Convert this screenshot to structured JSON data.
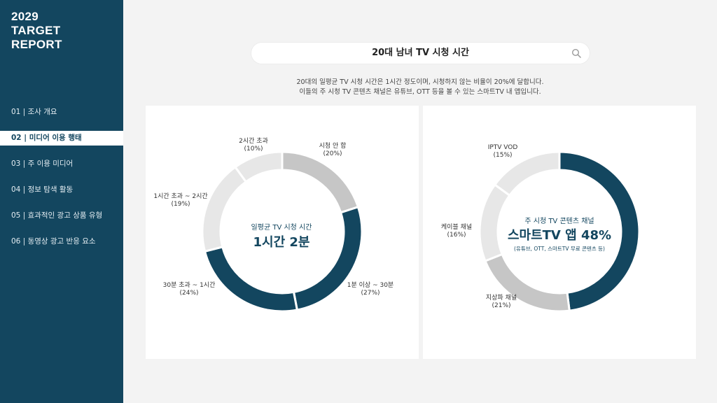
{
  "sidebar": {
    "title_lines": [
      "2029",
      "TARGET",
      "REPORT"
    ],
    "items": [
      {
        "label": "01 | 조사 개요",
        "active": false
      },
      {
        "label": "02 | 미디어 이용 행태",
        "active": true
      },
      {
        "label": "03 | 주 이용 미디어",
        "active": false
      },
      {
        "label": "04 | 정보 탐색 활동",
        "active": false
      },
      {
        "label": "05 | 효과적인 광고 상품 유형",
        "active": false
      },
      {
        "label": "06 | 동영상 광고 반응 요소",
        "active": false
      }
    ]
  },
  "search": {
    "title": "20대 남녀 TV 시청 시간",
    "icon": "search-icon"
  },
  "description": {
    "line1": "20대의 일평균 TV 시청 시간은 1시간 정도이며, 시청하지 않는 비율이 20%에 달합니다.",
    "line2": "이들의 주 시청 TV 콘텐츠 채널은 유튜브, OTT 등을 볼 수 있는 스마트TV 내 앱입니다."
  },
  "colors": {
    "dark": "#13465f",
    "mid": "#c6c6c6",
    "light": "#e7e7e7",
    "sidebar": "#13465f"
  },
  "chart_data": [
    {
      "type": "pie",
      "center_label": "일평균 TV 시청 시간",
      "center_value": "1시간 2분",
      "slices": [
        {
          "name": "시청 안 함",
          "pct_label": "(20%)",
          "value": 20,
          "color": "#c6c6c6"
        },
        {
          "name": "1분 이상 ~ 30분",
          "pct_label": "(27%)",
          "value": 27,
          "color": "#13465f"
        },
        {
          "name": "30분 초과 ~ 1시간",
          "pct_label": "(24%)",
          "value": 24,
          "color": "#13465f"
        },
        {
          "name": "1시간 초과 ~ 2시간",
          "pct_label": "(19%)",
          "value": 19,
          "color": "#e7e7e7"
        },
        {
          "name": "2시간 초과",
          "pct_label": "(10%)",
          "value": 10,
          "color": "#e7e7e7"
        }
      ]
    },
    {
      "type": "pie",
      "center_label": "주 시청 TV 콘텐츠 채널",
      "center_value": "스마트TV 앱 48%",
      "center_sub": "(유튜브, OTT, 스마트TV 무료 콘텐츠 등)",
      "slices": [
        {
          "name": "스마트TV 앱",
          "value": 48,
          "color": "#13465f"
        },
        {
          "name": "지상파 채널",
          "pct_label": "(21%)",
          "value": 21,
          "color": "#c6c6c6"
        },
        {
          "name": "케이블 채널",
          "pct_label": "(16%)",
          "value": 16,
          "color": "#e7e7e7"
        },
        {
          "name": "IPTV VOD",
          "pct_label": "(15%)",
          "value": 15,
          "color": "#e7e7e7"
        }
      ]
    }
  ]
}
